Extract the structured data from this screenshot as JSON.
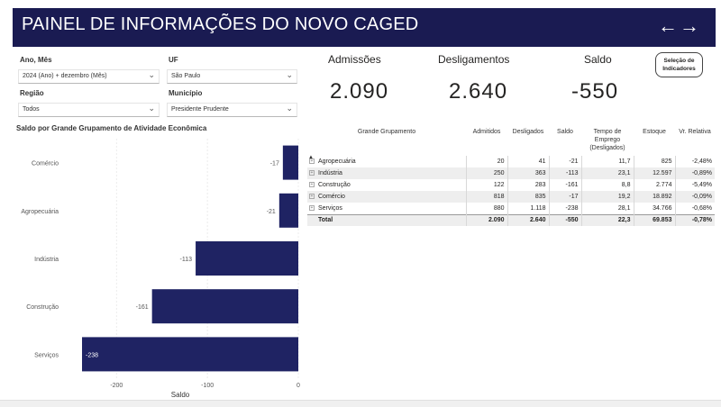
{
  "header": {
    "title": "PAINEL DE INFORMAÇÕES DO NOVO CAGED",
    "back_arrow": "←",
    "forward_arrow": "→"
  },
  "filters": {
    "ano_mes": {
      "label": "Ano, Mês",
      "value": "2024 (Ano) + dezembro (Mês)"
    },
    "uf": {
      "label": "UF",
      "value": "São Paulo"
    },
    "regiao": {
      "label": "Região",
      "value": "Todos"
    },
    "municipio": {
      "label": "Município",
      "value": "Presidente Prudente"
    }
  },
  "kpis": {
    "admissoes": {
      "label": "Admissões",
      "value": "2.090"
    },
    "desligamentos": {
      "label": "Desligamentos",
      "value": "2.640"
    },
    "saldo": {
      "label": "Saldo",
      "value": "-550"
    }
  },
  "selection_button": "Seleção de Indicadores",
  "chart_title": "Saldo por Grande Grupamento de Atividade Econômica",
  "chart_data": {
    "type": "bar",
    "orientation": "horizontal",
    "categories": [
      "Comércio",
      "Agropecuária",
      "Indústria",
      "Construção",
      "Serviços"
    ],
    "values": [
      -17,
      -21,
      -113,
      -161,
      -238
    ],
    "xlabel": "Saldo",
    "xticks": [
      -200,
      -100,
      0
    ],
    "xlim": [
      -240,
      0
    ],
    "bar_color": "#1f2363"
  },
  "table": {
    "sort_indicator": "▲",
    "headers": [
      "Grande Grupamento",
      "Admitidos",
      "Desligados",
      "Saldo",
      "Tempo de Emprego (Desligados)",
      "Estoque",
      "Vr. Relativa"
    ],
    "rows": [
      [
        "Agropecuária",
        "20",
        "41",
        "-21",
        "11,7",
        "825",
        "-2,48%"
      ],
      [
        "Indústria",
        "250",
        "363",
        "-113",
        "23,1",
        "12.597",
        "-0,89%"
      ],
      [
        "Construção",
        "122",
        "283",
        "-161",
        "8,8",
        "2.774",
        "-5,49%"
      ],
      [
        "Comércio",
        "818",
        "835",
        "-17",
        "19,2",
        "18.892",
        "-0,09%"
      ],
      [
        "Serviços",
        "880",
        "1.118",
        "-238",
        "28,1",
        "34.766",
        "-0,68%"
      ]
    ],
    "total": [
      "Total",
      "2.090",
      "2.640",
      "-550",
      "22,3",
      "69.853",
      "-0,78%"
    ]
  }
}
